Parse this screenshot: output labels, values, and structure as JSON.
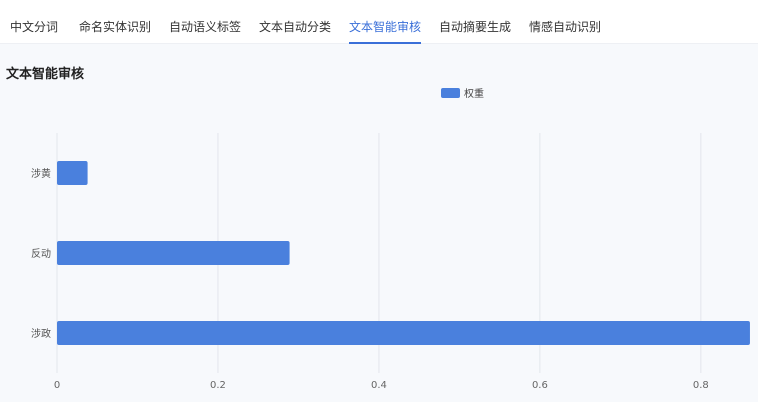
{
  "tabs": [
    {
      "label": "中文分词"
    },
    {
      "label": "命名实体识别"
    },
    {
      "label": "自动语义标签"
    },
    {
      "label": "文本自动分类"
    },
    {
      "label": "文本智能审核",
      "active": true
    },
    {
      "label": "自动摘要生成"
    },
    {
      "label": "情感自动识别"
    }
  ],
  "page_title": "文本智能审核",
  "chart_data": {
    "type": "bar",
    "orientation": "horizontal",
    "title": "",
    "categories": [
      "涉黄",
      "反动",
      "涉政"
    ],
    "series": [
      {
        "name": "权重",
        "values": [
          0.038,
          0.289,
          0.861
        ],
        "color": "#4a80dd"
      }
    ],
    "xticks": [
      "0",
      "0.2",
      "0.4",
      "0.6",
      "0.8"
    ],
    "xlim": [
      0,
      0.871
    ],
    "grid": "vertical",
    "legend": "top-center"
  }
}
